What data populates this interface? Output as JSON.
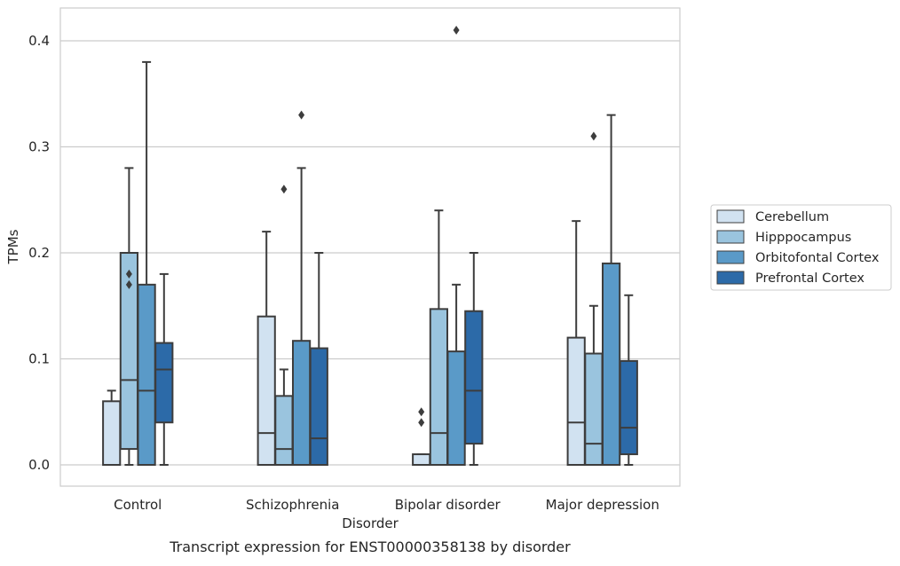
{
  "chart_data": {
    "type": "box",
    "title": "",
    "caption": "Transcript expression for ENST00000358138 by disorder",
    "xlabel": "Disorder",
    "ylabel": "TPMs",
    "ylim": [
      -0.02,
      0.43
    ],
    "yticks": [
      0.0,
      0.1,
      0.2,
      0.3,
      0.4
    ],
    "ytick_labels": [
      "0.0",
      "0.1",
      "0.2",
      "0.3",
      "0.4"
    ],
    "grid": "horizontal",
    "legend_placement": "right",
    "categories": [
      "Control",
      "Schizophrenia",
      "Bipolar disorder",
      "Major depression"
    ],
    "series": [
      {
        "name": "Cerebellum",
        "color": "#d1e2f1",
        "boxes": [
          {
            "whisker_low": 0.0,
            "q1": 0.0,
            "median": 0.0,
            "q3": 0.06,
            "whisker_high": 0.07,
            "outliers": []
          },
          {
            "whisker_low": 0.0,
            "q1": 0.0,
            "median": 0.03,
            "q3": 0.14,
            "whisker_high": 0.22,
            "outliers": []
          },
          {
            "whisker_low": 0.0,
            "q1": 0.0,
            "median": 0.0,
            "q3": 0.01,
            "whisker_high": 0.01,
            "outliers": [
              0.04,
              0.05
            ]
          },
          {
            "whisker_low": 0.0,
            "q1": 0.0,
            "median": 0.04,
            "q3": 0.12,
            "whisker_high": 0.23,
            "outliers": []
          }
        ]
      },
      {
        "name": "Hipppocampus",
        "color": "#9ac4de",
        "boxes": [
          {
            "whisker_low": 0.0,
            "q1": 0.015,
            "median": 0.08,
            "q3": 0.2,
            "whisker_high": 0.28,
            "outliers": [
              0.17,
              0.18
            ]
          },
          {
            "whisker_low": 0.0,
            "q1": 0.0,
            "median": 0.015,
            "q3": 0.065,
            "whisker_high": 0.09,
            "outliers": [
              0.26
            ]
          },
          {
            "whisker_low": 0.0,
            "q1": 0.0,
            "median": 0.03,
            "q3": 0.147,
            "whisker_high": 0.24,
            "outliers": []
          },
          {
            "whisker_low": 0.0,
            "q1": 0.0,
            "median": 0.02,
            "q3": 0.105,
            "whisker_high": 0.15,
            "outliers": [
              0.31
            ]
          }
        ]
      },
      {
        "name": "Orbitofontal Cortex",
        "color": "#5a9ac8",
        "boxes": [
          {
            "whisker_low": 0.0,
            "q1": 0.0,
            "median": 0.07,
            "q3": 0.17,
            "whisker_high": 0.38,
            "outliers": []
          },
          {
            "whisker_low": 0.0,
            "q1": 0.0,
            "median": 0.0,
            "q3": 0.117,
            "whisker_high": 0.28,
            "outliers": [
              0.33
            ]
          },
          {
            "whisker_low": 0.0,
            "q1": 0.0,
            "median": 0.0,
            "q3": 0.107,
            "whisker_high": 0.17,
            "outliers": [
              0.41
            ]
          },
          {
            "whisker_low": 0.0,
            "q1": 0.0,
            "median": 0.0,
            "q3": 0.19,
            "whisker_high": 0.33,
            "outliers": []
          }
        ]
      },
      {
        "name": "Prefrontal Cortex",
        "color": "#2c6aa8",
        "boxes": [
          {
            "whisker_low": 0.0,
            "q1": 0.04,
            "median": 0.09,
            "q3": 0.115,
            "whisker_high": 0.18,
            "outliers": []
          },
          {
            "whisker_low": 0.0,
            "q1": 0.0,
            "median": 0.025,
            "q3": 0.11,
            "whisker_high": 0.2,
            "outliers": []
          },
          {
            "whisker_low": 0.0,
            "q1": 0.02,
            "median": 0.07,
            "q3": 0.145,
            "whisker_high": 0.2,
            "outliers": []
          },
          {
            "whisker_low": 0.0,
            "q1": 0.01,
            "median": 0.035,
            "q3": 0.098,
            "whisker_high": 0.16,
            "outliers": []
          }
        ]
      }
    ]
  }
}
